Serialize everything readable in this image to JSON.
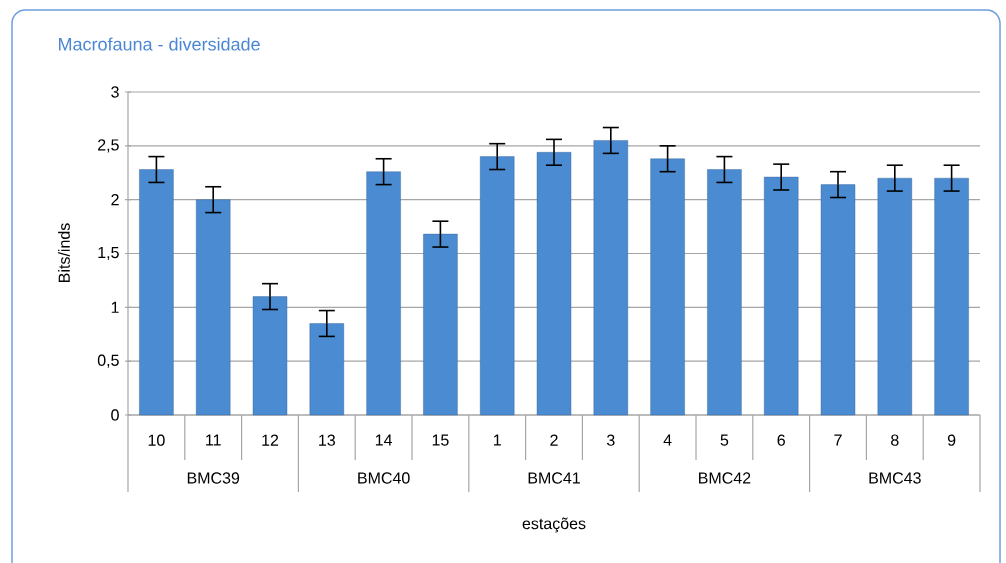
{
  "chart_data": {
    "type": "bar",
    "title": "Macrofauna -  diversidade",
    "xlabel": "estações",
    "ylabel": "Bits/inds",
    "categories": [
      "10",
      "11",
      "12",
      "13",
      "14",
      "15",
      "1",
      "2",
      "3",
      "4",
      "5",
      "6",
      "7",
      "8",
      "9"
    ],
    "values": [
      2.28,
      2.0,
      1.1,
      0.85,
      2.26,
      1.68,
      2.4,
      2.44,
      2.55,
      2.38,
      2.28,
      2.21,
      2.14,
      2.2,
      2.2
    ],
    "errors": [
      0.12,
      0.12,
      0.12,
      0.12,
      0.12,
      0.12,
      0.12,
      0.12,
      0.12,
      0.12,
      0.12,
      0.12,
      0.12,
      0.12,
      0.12
    ],
    "color": "#4a8bd2",
    "ylim": [
      0,
      3
    ],
    "yticks": [
      0,
      {
        "value": 0.5,
        "label": "0,5"
      },
      1,
      {
        "value": 1.5,
        "label": "1,5"
      },
      2,
      {
        "value": 2.5,
        "label": "2,5"
      },
      3
    ],
    "grid": "y",
    "annotations": [
      "BMC39",
      "BMC40",
      "BMC41",
      "BMC42",
      "BMC43"
    ]
  }
}
